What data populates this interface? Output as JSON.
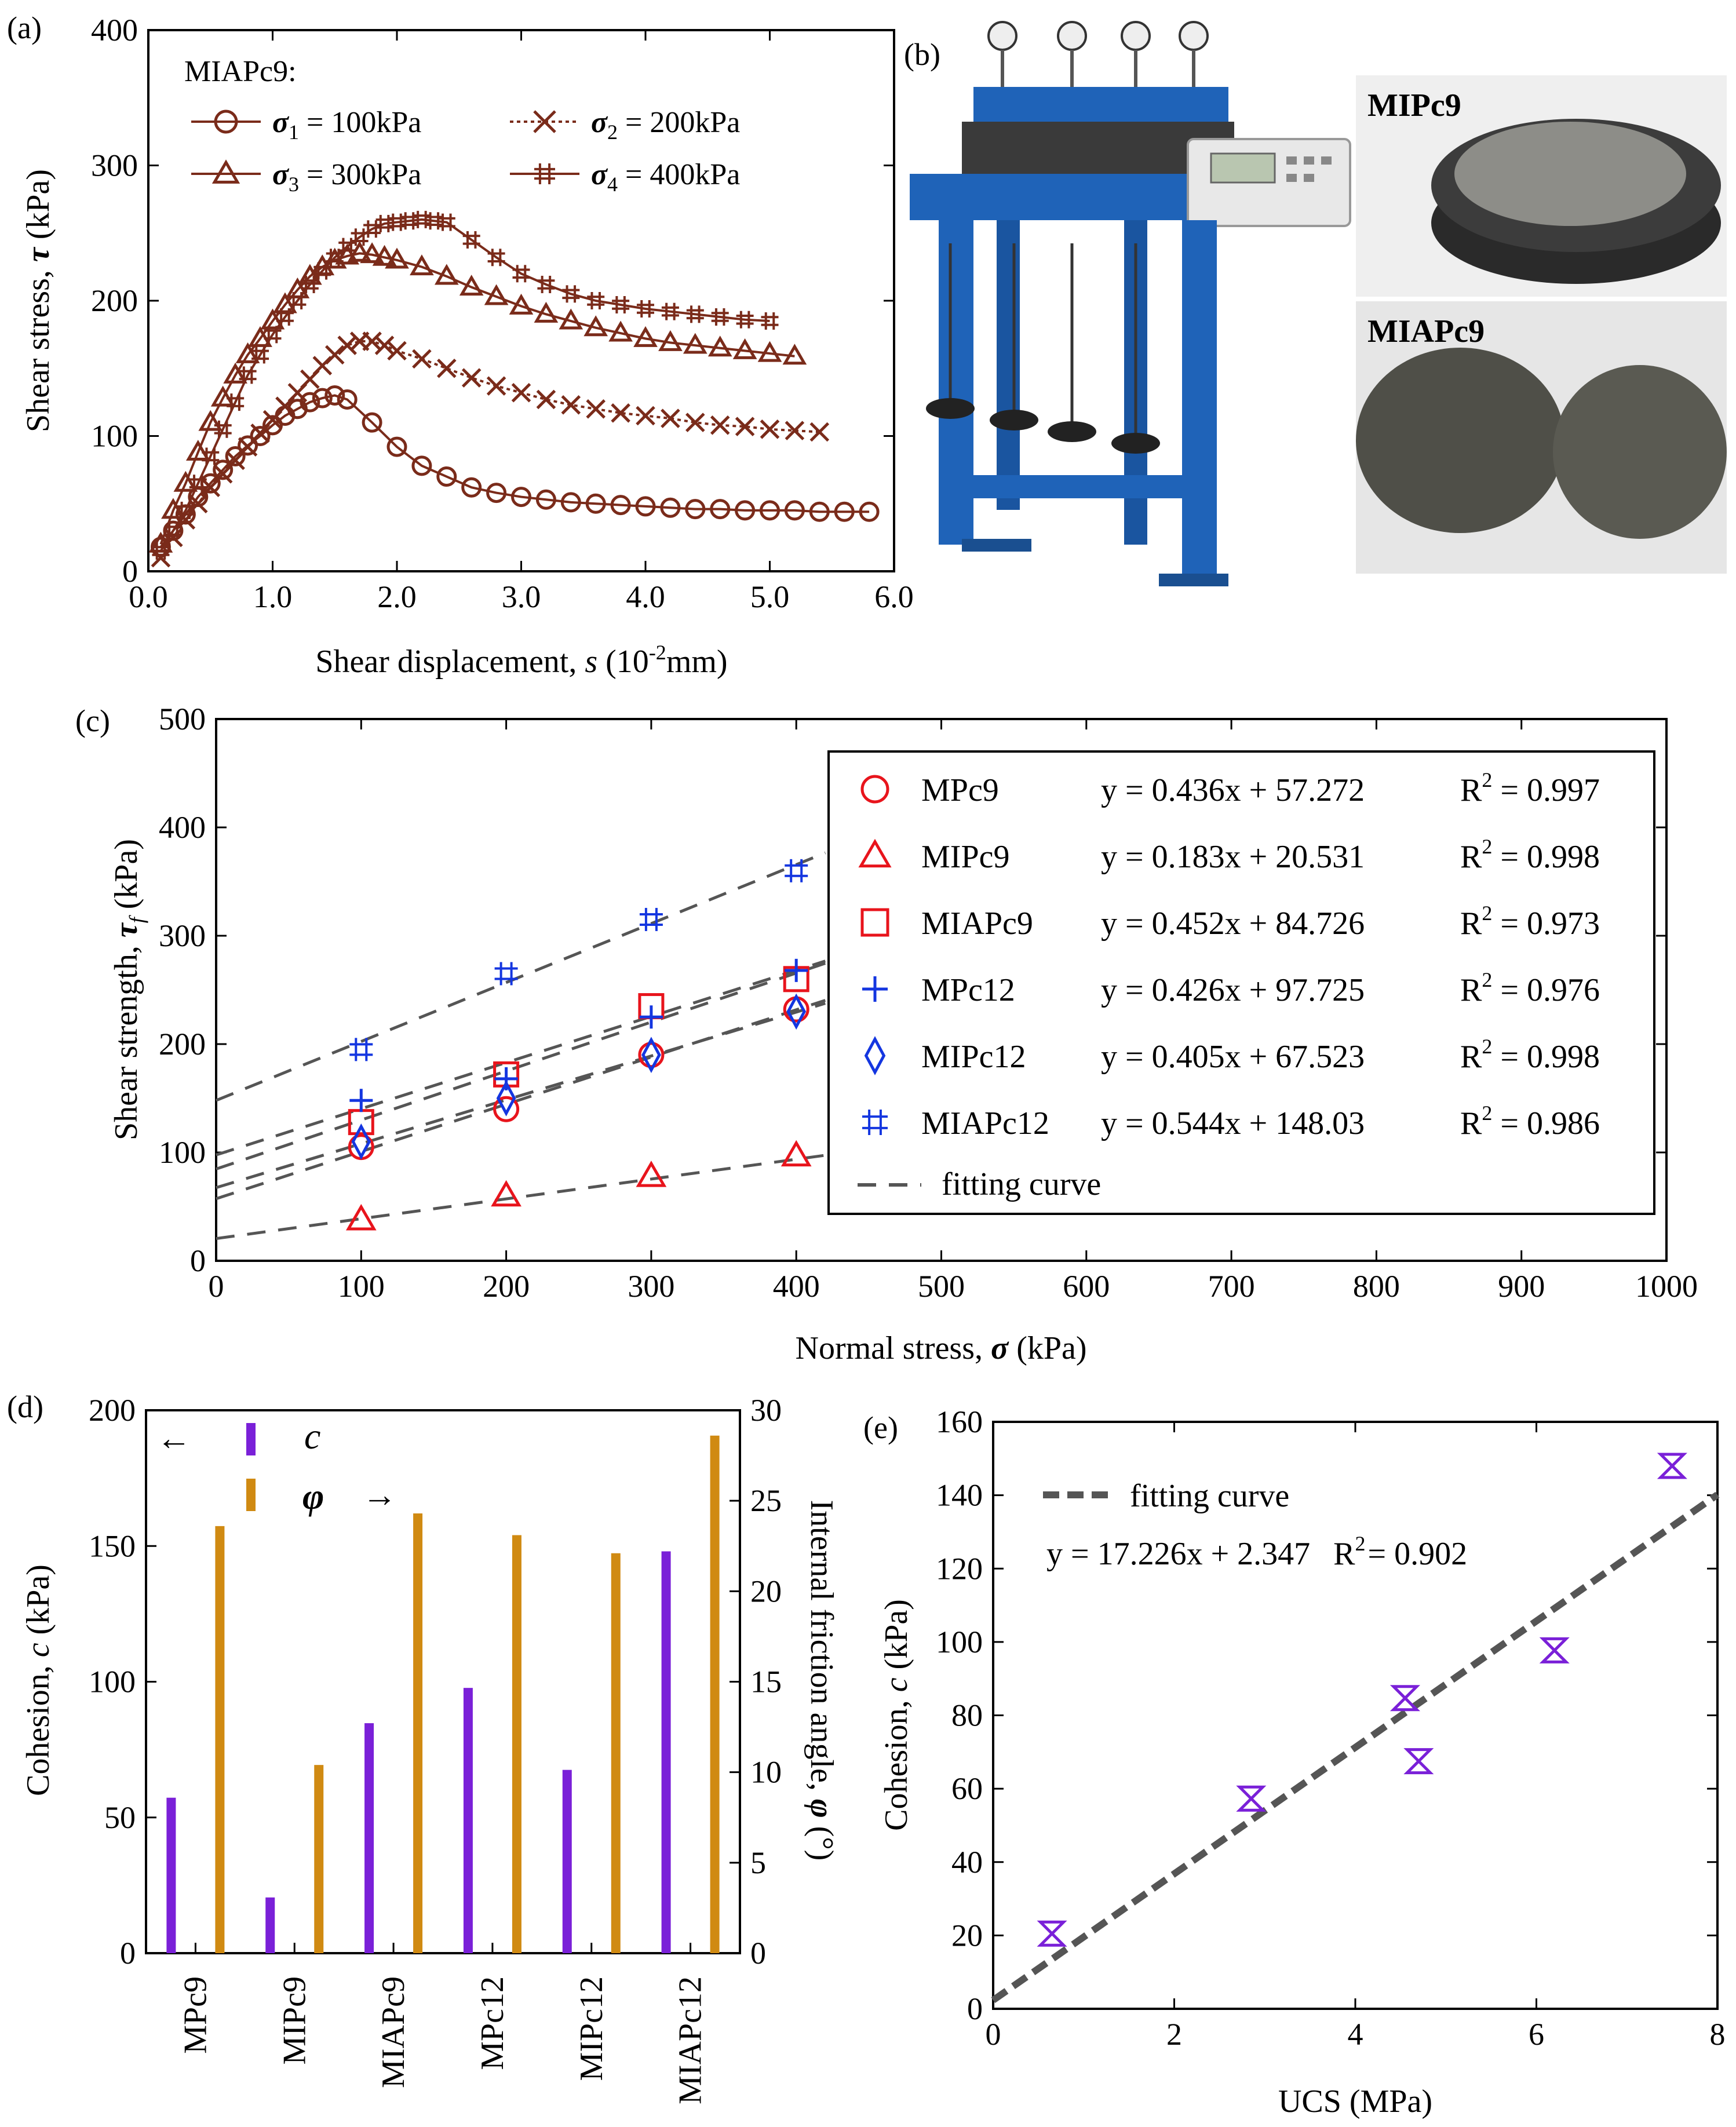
{
  "panel_labels": {
    "a": "(a)",
    "b": "(b)",
    "c": "(c)",
    "d": "(d)",
    "e": "(e)"
  },
  "photo": {
    "machine_label": "direct-shear-apparatus",
    "sample_top_label": "MIPc9",
    "sample_bottom_label": "MIAPc9"
  },
  "colors": {
    "brown": "#7a2b1a",
    "red": "#e8141c",
    "blue": "#1436e0",
    "purple": "#7a20d8",
    "gold": "#d08a12",
    "fit": "#555555",
    "machine_blue": "#1f63b8"
  },
  "chart_data": [
    {
      "id": "a",
      "type": "line",
      "title": "",
      "xlabel": "Shear displacement, s (10-2 mm)",
      "xlabel_parts": {
        "pre": "Shear displacement, ",
        "var": "s",
        "mid": " (10",
        "sup": "-2",
        "post": "mm)"
      },
      "ylabel_parts": {
        "pre": "Shear stress, ",
        "var": "τ",
        "post": " (kPa)"
      },
      "xlim": [
        0,
        6
      ],
      "ylim": [
        0,
        400
      ],
      "xticks": [
        "0.0",
        "1.0",
        "2.0",
        "3.0",
        "4.0",
        "5.0",
        "6.0"
      ],
      "yticks": [
        "0",
        "100",
        "200",
        "300",
        "400"
      ],
      "legend_title": "MIAPc9:",
      "series": [
        {
          "name": "σ1 = 100kPa",
          "sym": "σ",
          "sub": "1",
          "val": " = 100kPa",
          "marker": "circle",
          "style": "solid",
          "x": [
            0.1,
            0.2,
            0.3,
            0.4,
            0.5,
            0.6,
            0.7,
            0.8,
            0.9,
            1.0,
            1.1,
            1.2,
            1.3,
            1.4,
            1.5,
            1.6,
            1.8,
            2.0,
            2.2,
            2.4,
            2.6,
            2.8,
            3.0,
            3.2,
            3.4,
            3.6,
            3.8,
            4.0,
            4.2,
            4.4,
            4.6,
            4.8,
            5.0,
            5.2,
            5.4,
            5.6,
            5.8
          ],
          "y": [
            18,
            30,
            42,
            55,
            65,
            75,
            85,
            93,
            100,
            108,
            115,
            120,
            125,
            128,
            130,
            127,
            110,
            92,
            78,
            70,
            62,
            58,
            55,
            53,
            51,
            50,
            49,
            48,
            47,
            46,
            46,
            45,
            45,
            45,
            44,
            44,
            44
          ]
        },
        {
          "name": "σ2 = 200kPa",
          "sym": "σ",
          "sub": "2",
          "val": " = 200kPa",
          "marker": "x",
          "style": "dotted",
          "x": [
            0.1,
            0.2,
            0.3,
            0.4,
            0.5,
            0.6,
            0.7,
            0.8,
            0.9,
            1.0,
            1.1,
            1.2,
            1.3,
            1.4,
            1.5,
            1.6,
            1.7,
            1.8,
            1.9,
            2.0,
            2.2,
            2.4,
            2.6,
            2.8,
            3.0,
            3.2,
            3.4,
            3.6,
            3.8,
            4.0,
            4.2,
            4.4,
            4.6,
            4.8,
            5.0,
            5.2,
            5.4
          ],
          "y": [
            10,
            25,
            38,
            50,
            62,
            72,
            82,
            92,
            102,
            112,
            122,
            132,
            142,
            152,
            160,
            167,
            170,
            170,
            167,
            163,
            157,
            150,
            143,
            137,
            132,
            127,
            123,
            120,
            117,
            115,
            113,
            110,
            108,
            107,
            105,
            104,
            103
          ]
        },
        {
          "name": "σ3 = 300kPa",
          "sym": "σ",
          "sub": "3",
          "val": " = 300kPa",
          "marker": "triangle",
          "style": "solid",
          "x": [
            0.1,
            0.2,
            0.3,
            0.4,
            0.5,
            0.6,
            0.7,
            0.8,
            0.9,
            1.0,
            1.1,
            1.2,
            1.3,
            1.4,
            1.5,
            1.6,
            1.7,
            1.8,
            1.9,
            2.0,
            2.2,
            2.4,
            2.6,
            2.8,
            3.0,
            3.2,
            3.4,
            3.6,
            3.8,
            4.0,
            4.2,
            4.4,
            4.6,
            4.8,
            5.0,
            5.2
          ],
          "y": [
            20,
            45,
            65,
            88,
            110,
            128,
            145,
            160,
            172,
            185,
            197,
            208,
            218,
            225,
            230,
            233,
            235,
            234,
            232,
            230,
            225,
            218,
            210,
            203,
            196,
            190,
            185,
            180,
            176,
            172,
            169,
            167,
            165,
            163,
            161,
            159
          ]
        },
        {
          "name": "σ4 = 400kPa",
          "sym": "σ",
          "sub": "4",
          "val": " = 400kPa",
          "marker": "hash",
          "style": "solid",
          "x": [
            0.1,
            0.2,
            0.3,
            0.4,
            0.5,
            0.6,
            0.7,
            0.8,
            0.9,
            1.0,
            1.1,
            1.2,
            1.3,
            1.4,
            1.5,
            1.6,
            1.7,
            1.8,
            1.9,
            2.0,
            2.1,
            2.2,
            2.3,
            2.4,
            2.6,
            2.8,
            3.0,
            3.2,
            3.4,
            3.6,
            3.8,
            4.0,
            4.2,
            4.4,
            4.6,
            4.8,
            5.0
          ],
          "y": [
            15,
            30,
            45,
            65,
            85,
            105,
            125,
            145,
            160,
            175,
            188,
            200,
            212,
            222,
            232,
            240,
            247,
            253,
            257,
            258,
            259,
            260,
            259,
            258,
            245,
            232,
            220,
            212,
            205,
            200,
            197,
            194,
            192,
            190,
            188,
            186,
            185
          ]
        }
      ]
    },
    {
      "id": "c",
      "type": "scatter",
      "xlabel_parts": {
        "pre": "Normal stress, ",
        "var": "σ",
        "post": " (kPa)"
      },
      "ylabel_parts": {
        "pre": "Shear strength, ",
        "var": "τ",
        "sub": "f",
        "post": " (kPa)"
      },
      "xlim": [
        0,
        1000
      ],
      "ylim": [
        0,
        500
      ],
      "xticks": [
        "0",
        "100",
        "200",
        "300",
        "400",
        "500",
        "600",
        "700",
        "800",
        "900",
        "1000"
      ],
      "yticks": [
        "0",
        "100",
        "200",
        "300",
        "400",
        "500"
      ],
      "x": [
        100,
        200,
        300,
        400
      ],
      "fit_xmax": 420,
      "series": [
        {
          "name": "MPc9",
          "marker": "circle",
          "color": "red",
          "eq": "y = 0.436x + 57.272",
          "r2": "= 0.997",
          "slope": 0.436,
          "intercept": 57.272,
          "values": [
            105,
            140,
            190,
            232
          ]
        },
        {
          "name": "MIPc9",
          "marker": "triangle",
          "color": "red",
          "eq": "y = 0.183x + 20.531",
          "r2": "= 0.998",
          "slope": 0.183,
          "intercept": 20.531,
          "values": [
            38,
            60,
            78,
            97
          ]
        },
        {
          "name": "MIAPc9",
          "marker": "square",
          "color": "red",
          "eq": "y = 0.452x + 84.726",
          "r2": "= 0.973",
          "slope": 0.452,
          "intercept": 84.726,
          "values": [
            128,
            172,
            235,
            260
          ]
        },
        {
          "name": "MPc12",
          "marker": "plus",
          "color": "blue",
          "eq": "y = 0.426x + 97.725",
          "r2": "= 0.976",
          "slope": 0.426,
          "intercept": 97.725,
          "values": [
            148,
            168,
            225,
            268
          ]
        },
        {
          "name": "MIPc12",
          "marker": "diamond",
          "color": "blue",
          "eq": "y = 0.405x + 67.523",
          "r2": "= 0.998",
          "slope": 0.405,
          "intercept": 67.523,
          "values": [
            110,
            150,
            190,
            230
          ]
        },
        {
          "name": "MIAPc12",
          "marker": "hash",
          "color": "blue",
          "eq": "y = 0.544x + 148.03",
          "r2": "= 0.986",
          "slope": 0.544,
          "intercept": 148.03,
          "values": [
            195,
            265,
            315,
            360
          ]
        }
      ],
      "fit_legend": "fitting curve",
      "r2_label": "R",
      "r2_sup": "2"
    },
    {
      "id": "d",
      "type": "bar",
      "categories": [
        "MPc9",
        "MIPc9",
        "MIAPc9",
        "MPc12",
        "MIPc12",
        "MIAPc12"
      ],
      "series": [
        {
          "name": "c",
          "axis": "left",
          "color": "purple",
          "values": [
            57.272,
            20.531,
            84.726,
            97.725,
            67.523,
            148.03
          ]
        },
        {
          "name": "φ",
          "axis": "right",
          "color": "gold",
          "values": [
            23.6,
            10.4,
            24.3,
            23.1,
            22.1,
            28.6
          ]
        }
      ],
      "ylim_left": [
        0,
        200
      ],
      "ylim_right": [
        0,
        30
      ],
      "yticks_left": [
        "0",
        "50",
        "100",
        "150",
        "200"
      ],
      "yticks_right": [
        "0",
        "5",
        "10",
        "15",
        "20",
        "25",
        "30"
      ],
      "ylabel_left_parts": {
        "pre": "Cohesion, ",
        "var": "c",
        "post": " (kPa)"
      },
      "ylabel_right_parts": {
        "pre": "Internal friction angle, ",
        "var": "φ",
        "post": " (°)"
      },
      "legend": {
        "c_label": "c",
        "phi_label": "φ",
        "left_arrow": "←",
        "right_arrow": "→"
      }
    },
    {
      "id": "e",
      "type": "scatter",
      "xlabel": "UCS (MPa)",
      "ylabel_parts": {
        "pre": "Cohesion, ",
        "var": "c",
        "post": " (kPa)"
      },
      "xlim": [
        0,
        8
      ],
      "ylim": [
        0,
        160
      ],
      "xticks": [
        "0",
        "2",
        "4",
        "6",
        "8"
      ],
      "yticks": [
        "0",
        "20",
        "40",
        "60",
        "80",
        "100",
        "120",
        "140",
        "160"
      ],
      "x": [
        0.65,
        2.85,
        4.55,
        4.7,
        6.2,
        7.5
      ],
      "y": [
        20.5,
        57.3,
        84.7,
        67.5,
        97.7,
        148.0
      ],
      "fit": {
        "slope": 17.226,
        "intercept": 2.347
      },
      "legend_label": "fitting curve",
      "equation": "y = 17.226x + 2.347",
      "r2": "= 0.902",
      "r2_label": "R",
      "r2_sup": "2"
    }
  ]
}
